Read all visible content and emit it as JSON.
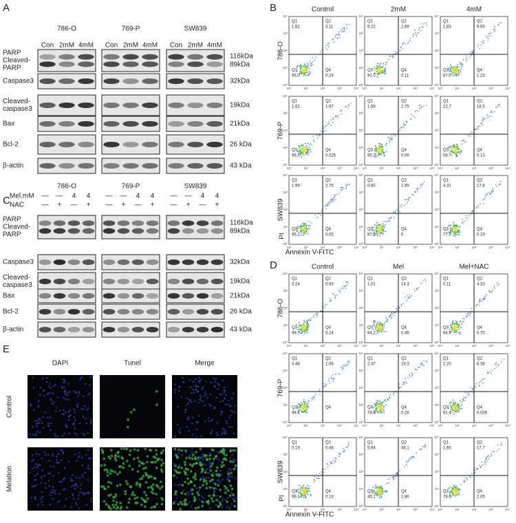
{
  "panel_a": {
    "label": "A",
    "cell_lines": [
      "786-O",
      "769-P",
      "SW839"
    ],
    "lanes": [
      "Con",
      "2mM",
      "4mM"
    ],
    "rows": [
      {
        "label": [
          "PARP",
          "Cleaved-",
          "PARP"
        ],
        "kda": [
          "116kDa",
          "89kDa"
        ]
      },
      {
        "label": [
          "Caspase3"
        ],
        "kda": [
          "32kDa"
        ]
      },
      {
        "label": [
          "Cleaved-",
          "caspase3"
        ],
        "kda": [
          "19kDa"
        ]
      },
      {
        "label": [
          "Bax"
        ],
        "kda": [
          "21kDa"
        ]
      },
      {
        "label": [
          "Bcl-2"
        ],
        "kda": [
          "26 kDa"
        ]
      },
      {
        "label": [
          "β-actin"
        ],
        "kda": [
          "43 kDa"
        ]
      }
    ]
  },
  "panel_b": {
    "label": "B",
    "columns": [
      "Control",
      "2mM",
      "4mM"
    ],
    "row_labels": [
      "786-O",
      "769-P",
      "SW839"
    ],
    "y_axis": "PI",
    "x_axis": "Annexin V-FITC",
    "plots": [
      [
        [
          "1.62",
          "3.11",
          "95.0",
          "0.24"
        ],
        [
          "6.22",
          "2.69",
          "91.0",
          "0.11"
        ],
        [
          "1.83",
          "9.93",
          "87.0",
          "1.23"
        ]
      ],
      [
        [
          "1.62",
          "1.97",
          "96.5",
          "0.025"
        ],
        [
          "1.99",
          "2.75",
          "95.2",
          "0.06"
        ],
        [
          "22.7",
          "18.5",
          "58.7",
          "0.13"
        ]
      ],
      [
        [
          "1.99",
          "2.75",
          "95.2",
          "0.05"
        ],
        [
          "0.80",
          "1.95",
          "97.2",
          "0"
        ],
        [
          "4.31",
          "17.8",
          "77.7",
          "0.19"
        ]
      ]
    ]
  },
  "panel_c": {
    "label": "C",
    "cell_lines": [
      "786-O",
      "769-P",
      "SW839"
    ],
    "treatments": [
      {
        "label": "Mel.mM",
        "marks": [
          "—",
          "—",
          "4",
          "4"
        ]
      },
      {
        "label": "NAC",
        "marks": [
          "—",
          "+",
          "—",
          "+"
        ]
      }
    ],
    "rows": [
      {
        "label": [
          "PARP",
          "Cleaved-",
          "PARP"
        ],
        "kda": [
          "116kDa",
          "89kDa"
        ]
      },
      {
        "label": [
          "Caspase3"
        ],
        "kda": [
          "32kDa"
        ]
      },
      {
        "label": [
          "Cleaved-",
          "caspase3"
        ],
        "kda": [
          "19kDa"
        ]
      },
      {
        "label": [
          "Bax"
        ],
        "kda": [
          "21kDa"
        ]
      },
      {
        "label": [
          "Bcl-2"
        ],
        "kda": [
          "26 kDa"
        ]
      },
      {
        "label": [
          "β-actin"
        ],
        "kda": [
          "43 kDa"
        ]
      }
    ]
  },
  "panel_d": {
    "label": "D",
    "columns": [
      "Control",
      "Mel",
      "Mel+NAC"
    ],
    "row_labels": [
      "786-O",
      "769-P",
      "SW839"
    ],
    "y_axis": "PI",
    "x_axis": "Annexin V-FITC",
    "plots": [
      [
        [
          "0.24",
          "0.93",
          "98.7",
          "0.24"
        ],
        [
          "1.01",
          "14.3",
          "84.2",
          "0.46"
        ],
        [
          "0.11",
          "4.33",
          "94.9",
          "0.70"
        ]
      ],
      [
        [
          "0.48",
          "1.06",
          "98.4",
          null
        ],
        [
          "2.47",
          "19.3",
          "78.0",
          "0.28"
        ],
        [
          "2.20",
          "6.38",
          "91.4",
          "0.028"
        ]
      ],
      [
        [
          "0.19",
          "0.49",
          "99.1",
          "0.18"
        ],
        [
          "5.94",
          "46.1",
          "45.1",
          "2.86"
        ],
        [
          "1.65",
          "17.7",
          "78.6",
          "2.05"
        ]
      ]
    ]
  },
  "panel_e": {
    "label": "E",
    "columns": [
      "DAPI",
      "Tunel",
      "Merge"
    ],
    "row_labels": [
      "Control",
      "Melation"
    ]
  },
  "quadrant_labels": [
    "Q1",
    "Q2",
    "Q3",
    "Q4"
  ],
  "flow_axis_ticks": [
    "10⁰",
    "10¹",
    "10²",
    "10³",
    "10⁴"
  ]
}
